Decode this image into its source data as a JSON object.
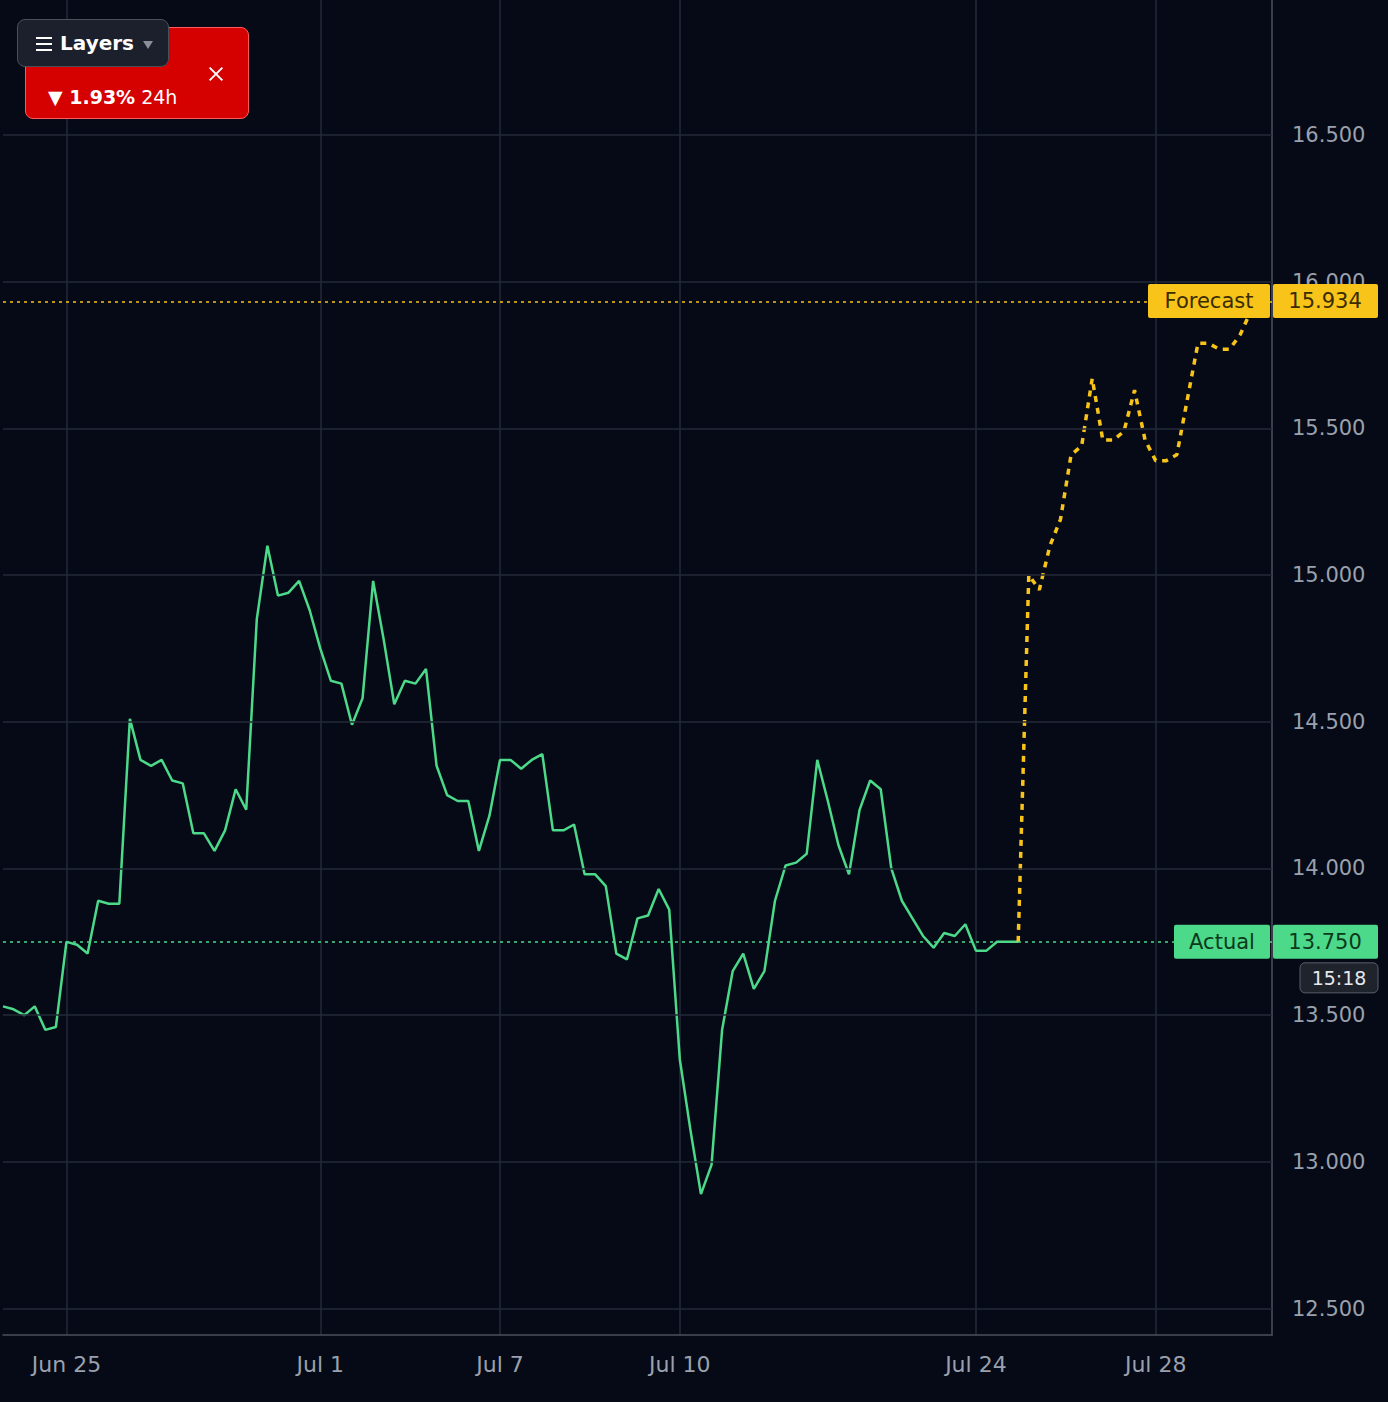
{
  "chart_data": {
    "type": "line",
    "categories": [
      null,
      null,
      null,
      null,
      null,
      null,
      "Jun 25",
      null,
      null,
      null,
      null,
      null,
      null,
      null,
      null,
      null,
      null,
      null,
      null,
      null,
      null,
      null,
      null,
      null,
      null,
      null,
      null,
      null,
      null,
      null,
      "Jul 1",
      null,
      null,
      null,
      null,
      null,
      null,
      null,
      null,
      null,
      null,
      null,
      null,
      null,
      null,
      null,
      null,
      "Jul 7",
      null,
      null,
      null,
      null,
      null,
      null,
      null,
      null,
      null,
      null,
      null,
      null,
      null,
      null,
      null,
      null,
      "Jul 10",
      null,
      null,
      null,
      null,
      null,
      null,
      null,
      null,
      null,
      null,
      null,
      null,
      null,
      null,
      null,
      null,
      null,
      null,
      null,
      null,
      null,
      null,
      null,
      null,
      null,
      null,
      null,
      "Jul 24",
      null,
      null,
      null,
      null,
      null,
      null,
      null,
      null,
      null,
      null,
      null,
      null,
      null,
      null,
      null,
      null,
      "Jul 28",
      null,
      null,
      null,
      null,
      null,
      null,
      null,
      null,
      null,
      null,
      null
    ],
    "series": [
      {
        "name": "Actual",
        "color": "#4cd98a",
        "line_style": "solid",
        "tag_value": 13.75,
        "tag_label": "13.750",
        "time_label": "15:18",
        "values": [
          13.53,
          13.52,
          13.5,
          13.53,
          13.45,
          13.46,
          13.75,
          13.74,
          13.71,
          13.89,
          13.88,
          13.88,
          14.51,
          14.37,
          14.35,
          14.37,
          14.3,
          14.29,
          14.12,
          14.12,
          14.06,
          14.13,
          14.27,
          14.2,
          14.85,
          15.1,
          14.93,
          14.94,
          14.98,
          14.88,
          14.75,
          14.64,
          14.63,
          14.49,
          14.58,
          14.98,
          14.78,
          14.56,
          14.64,
          14.63,
          14.68,
          14.35,
          14.25,
          14.23,
          14.23,
          14.06,
          14.18,
          14.37,
          14.37,
          14.34,
          14.37,
          14.39,
          14.13,
          14.13,
          14.15,
          13.98,
          13.98,
          13.94,
          13.71,
          13.69,
          13.83,
          13.84,
          13.93,
          13.86,
          13.35,
          13.11,
          12.89,
          12.99,
          13.45,
          13.65,
          13.71,
          13.59,
          13.65,
          13.89,
          14.01,
          14.02,
          14.05,
          14.37,
          14.23,
          14.08,
          13.98,
          14.2,
          14.3,
          14.27,
          14.0,
          13.89,
          13.83,
          13.77,
          13.73,
          13.78,
          13.77,
          13.81,
          13.72,
          13.72,
          13.75,
          13.75,
          13.75,
          null,
          null,
          null,
          null,
          null,
          null,
          null,
          null,
          null,
          null,
          null,
          null,
          null,
          null,
          null,
          null,
          null,
          null,
          null,
          null,
          null,
          null,
          null,
          null
        ]
      },
      {
        "name": "Forecast",
        "color": "#f8c41a",
        "line_style": "dashed",
        "tag_value": 15.934,
        "tag_label": "15.934",
        "values": [
          null,
          null,
          null,
          null,
          null,
          null,
          null,
          null,
          null,
          null,
          null,
          null,
          null,
          null,
          null,
          null,
          null,
          null,
          null,
          null,
          null,
          null,
          null,
          null,
          null,
          null,
          null,
          null,
          null,
          null,
          null,
          null,
          null,
          null,
          null,
          null,
          null,
          null,
          null,
          null,
          null,
          null,
          null,
          null,
          null,
          null,
          null,
          null,
          null,
          null,
          null,
          null,
          null,
          null,
          null,
          null,
          null,
          null,
          null,
          null,
          null,
          null,
          null,
          null,
          null,
          null,
          null,
          null,
          null,
          null,
          null,
          null,
          null,
          null,
          null,
          null,
          null,
          null,
          null,
          null,
          null,
          null,
          null,
          null,
          null,
          null,
          null,
          null,
          null,
          null,
          null,
          null,
          null,
          null,
          null,
          null,
          13.75,
          15.0,
          14.95,
          15.1,
          15.19,
          15.41,
          15.44,
          15.67,
          15.46,
          15.46,
          15.49,
          15.63,
          15.46,
          15.39,
          15.39,
          15.41,
          15.6,
          15.79,
          15.79,
          15.77,
          15.77,
          15.82,
          15.9,
          15.934,
          null
        ]
      }
    ],
    "ylim": [
      12.41,
      16.96
    ],
    "yticks": [
      {
        "value": 12.5,
        "label": "12.500"
      },
      {
        "value": 13,
        "label": "13.000"
      },
      {
        "value": 13.5,
        "label": "13.500"
      },
      {
        "value": 14,
        "label": "14.000"
      },
      {
        "value": 14.5,
        "label": "14.500"
      },
      {
        "value": 15,
        "label": "15.000"
      },
      {
        "value": 15.5,
        "label": "15.500"
      },
      {
        "value": 16,
        "label": "16.000"
      },
      {
        "value": 16.5,
        "label": "16.500"
      }
    ],
    "grid": true
  },
  "header": {
    "button": "Layers",
    "change": "▼ 1.93%",
    "period": "24h"
  }
}
